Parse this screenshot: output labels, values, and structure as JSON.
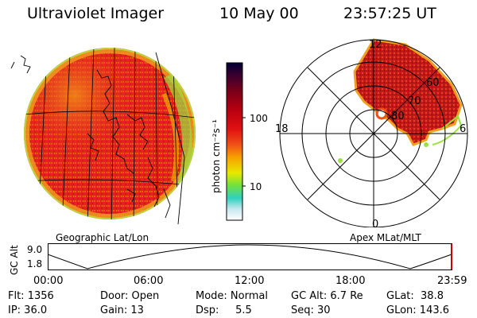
{
  "header": {
    "instrument": "Ultraviolet Imager",
    "date": "10 May 00",
    "time": "23:57:25 UT"
  },
  "panels": {
    "left_label": "Geographic Lat/Lon",
    "right_label": "Apex MLat/MLT"
  },
  "colorbar": {
    "unit_label": "photon cm⁻²s⁻¹",
    "ticks": [
      "100",
      "10"
    ],
    "scale": "log",
    "colors": [
      "#000033",
      "#3a0030",
      "#7a0018",
      "#b80010",
      "#e01010",
      "#f05018",
      "#f8a000",
      "#e8e800",
      "#70e040",
      "#30d0c0",
      "#c8e8f0",
      "#ffffff"
    ]
  },
  "polar_plot": {
    "mlt_labels": [
      "12",
      "18",
      "6",
      "0"
    ],
    "mlat_labels": [
      "60",
      "70",
      "80"
    ]
  },
  "altitude_plot": {
    "y_label": "GC Alt",
    "y_ticks": [
      "9.0",
      "1.8"
    ],
    "x_ticks": [
      "00:00",
      "06:00",
      "12:00",
      "18:00",
      "23:59"
    ]
  },
  "footer": {
    "rows": [
      [
        "Flt: 1356",
        "Door: Open",
        "Mode: Normal",
        "GC Alt: 6.7 Re",
        "GLat:  38.8"
      ],
      [
        "IP: 36.0",
        "Gain: 13",
        "Dsp:     5.5",
        "Seq: 30",
        "GLon: 143.6"
      ]
    ]
  }
}
